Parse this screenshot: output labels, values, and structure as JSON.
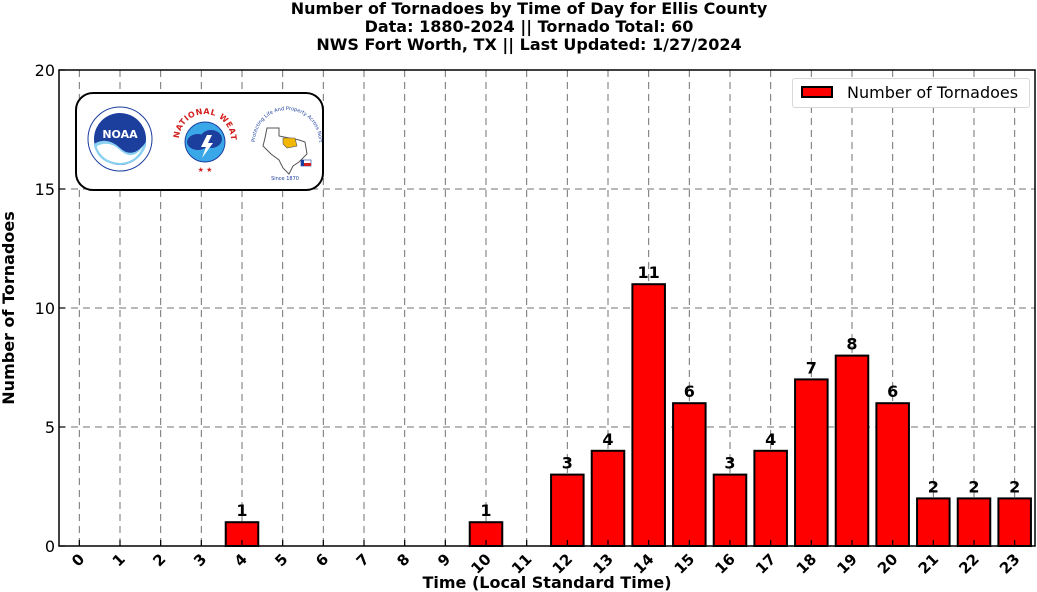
{
  "chart_data": {
    "type": "bar",
    "title_lines": [
      "Number of Tornadoes by Time of Day for Ellis County",
      "Data: 1880-2024 || Tornado Total: 60",
      "NWS Fort Worth, TX || Last Updated: 1/27/2024"
    ],
    "xlabel": "Time (Local Standard Time)",
    "ylabel": "Number of Tornadoes",
    "categories": [
      "0",
      "1",
      "2",
      "3",
      "4",
      "5",
      "6",
      "7",
      "8",
      "9",
      "10",
      "11",
      "12",
      "13",
      "14",
      "15",
      "16",
      "17",
      "18",
      "19",
      "20",
      "21",
      "22",
      "23"
    ],
    "series": [
      {
        "name": "Number of Tornadoes",
        "values": [
          0,
          0,
          0,
          0,
          1,
          0,
          0,
          0,
          0,
          0,
          1,
          0,
          3,
          4,
          11,
          6,
          3,
          4,
          7,
          8,
          6,
          2,
          2,
          2
        ]
      }
    ],
    "ylim": [
      0,
      20
    ],
    "yticks": [
      0,
      5,
      10,
      15,
      20
    ],
    "grid": true,
    "legend_position": "top-right",
    "bar_color": "#ff0000",
    "edge_color": "#000000",
    "data_labels": true
  },
  "logos": {
    "noaa_text": "NOAA",
    "nws_text": "NATIONAL WEATHER SERVICE",
    "tx_text": "Protecting Life And Property Across North Texas",
    "tx_since": "Since 1870"
  }
}
